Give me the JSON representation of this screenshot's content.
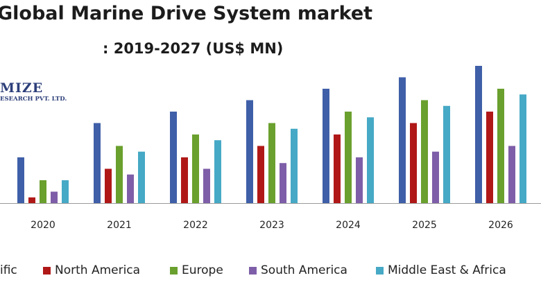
{
  "title": "Global Marine Drive System market",
  "subtitle": ": 2019-2027 (US$ MN)",
  "logo": {
    "line1": "MIZE",
    "line2": "ESEARCH PVT. LTD."
  },
  "colors": [
    "#3f5fa8",
    "#b01818",
    "#6aa02e",
    "#7e5ea8",
    "#46a9c6"
  ],
  "chart_data": {
    "type": "bar",
    "title": "Global Marine Drive System market : 2019-2027 (US$ MN)",
    "categories": [
      "2020",
      "2021",
      "2022",
      "2023",
      "2024",
      "2025",
      "2026"
    ],
    "series": [
      {
        "name": "Asia Pacific",
        "legend_label": "ific",
        "values": [
          40,
          70,
          80,
          90,
          100,
          110,
          120
        ]
      },
      {
        "name": "North America",
        "legend_label": "North America",
        "values": [
          5,
          30,
          40,
          50,
          60,
          70,
          80
        ]
      },
      {
        "name": "Europe",
        "legend_label": "Europe",
        "values": [
          20,
          50,
          60,
          70,
          80,
          90,
          100
        ]
      },
      {
        "name": "South America",
        "legend_label": "South America",
        "values": [
          10,
          25,
          30,
          35,
          40,
          45,
          50
        ]
      },
      {
        "name": "Middle East & Africa",
        "legend_label": "Middle East & Africa",
        "values": [
          20,
          45,
          55,
          65,
          75,
          85,
          95
        ]
      }
    ],
    "xlabel": "",
    "ylabel": "",
    "ylim": [
      0,
      120
    ],
    "grid": false,
    "legend": "bottom"
  }
}
